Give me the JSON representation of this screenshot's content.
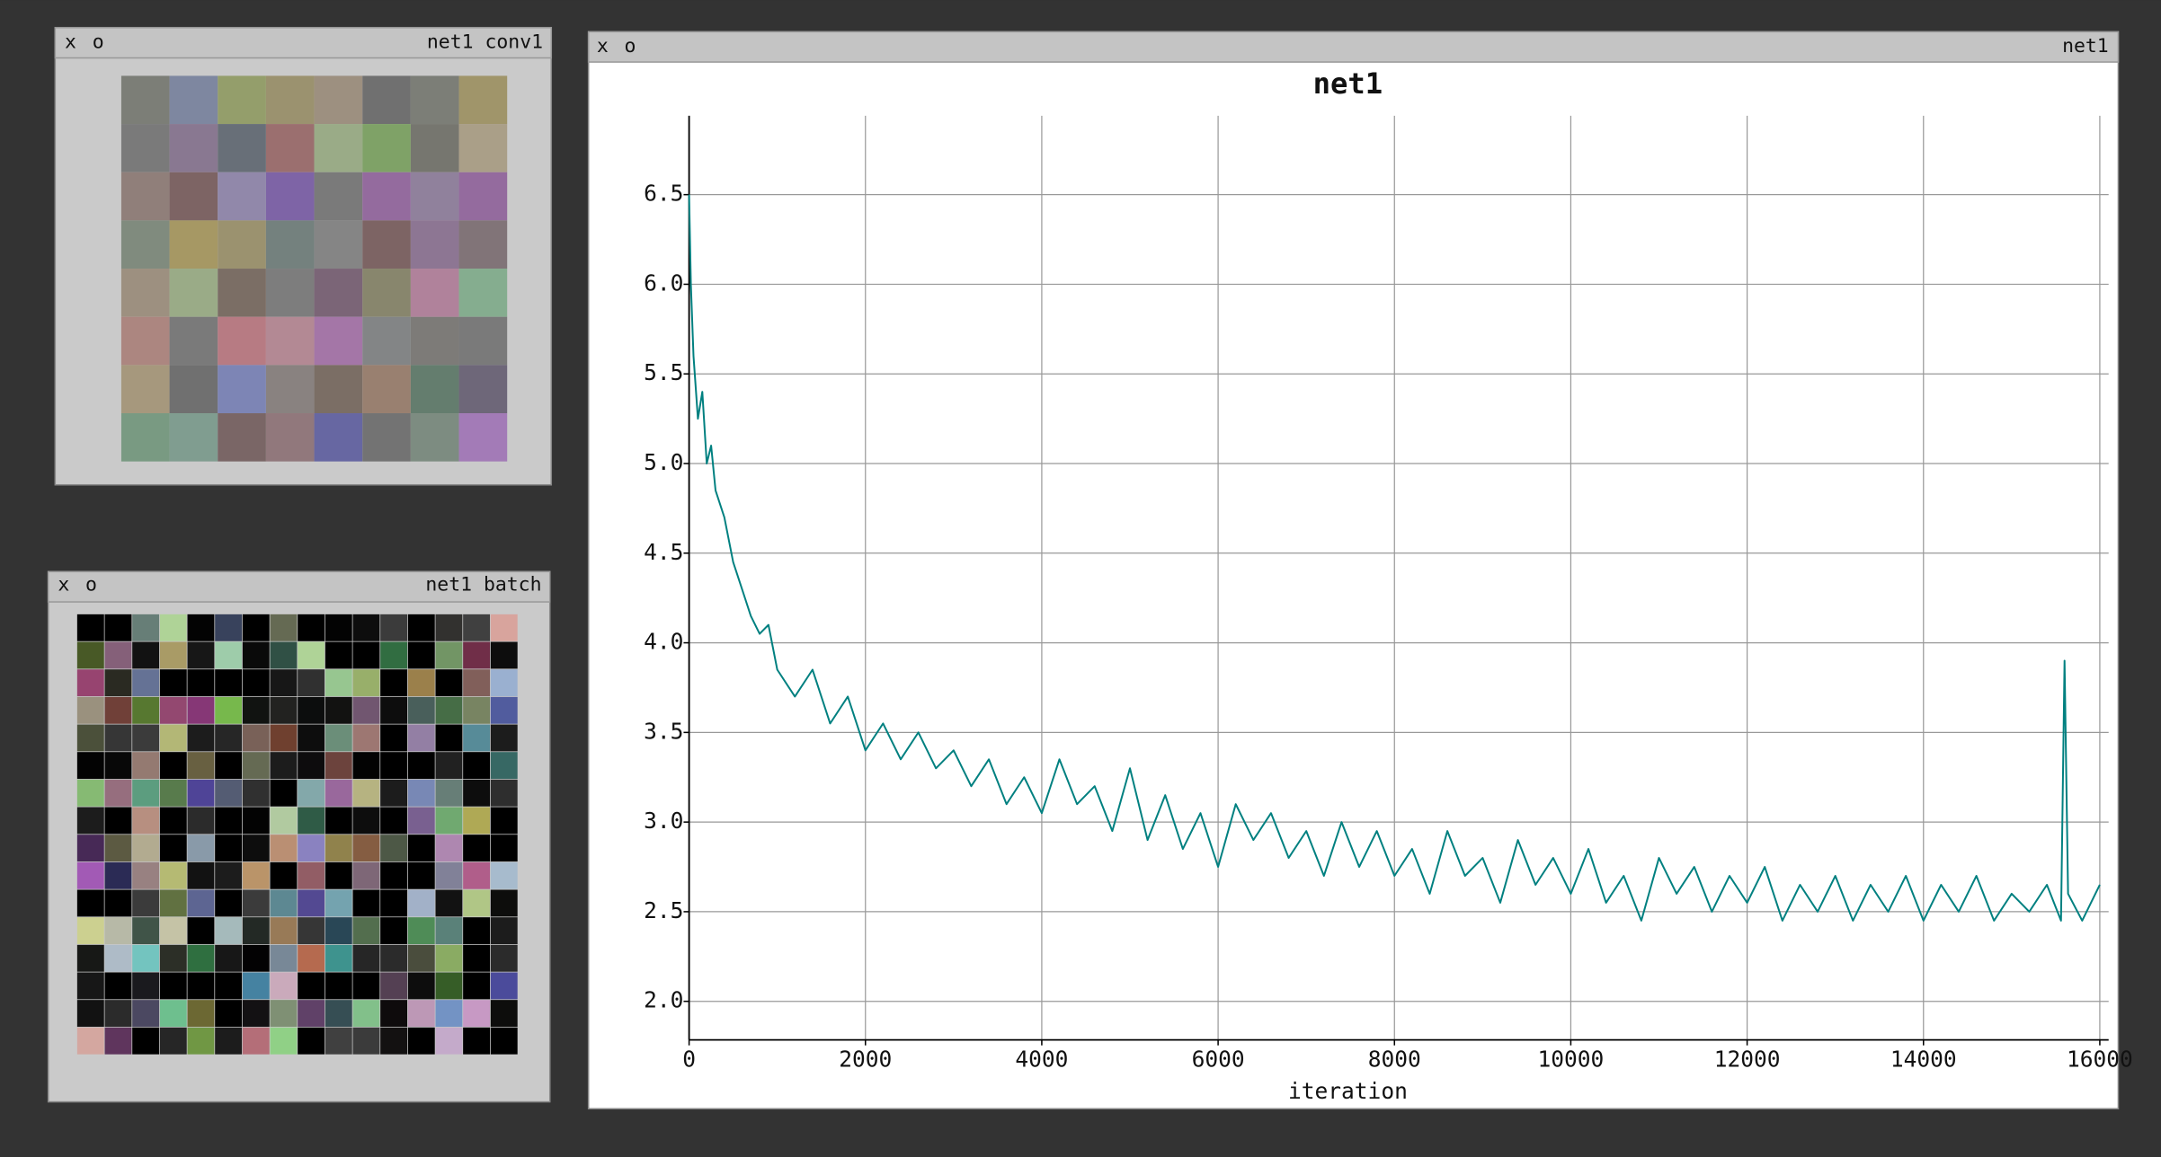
{
  "windows": [
    {
      "buttons": [
        "x",
        "o"
      ],
      "title": "net1 conv1"
    },
    {
      "buttons": [
        "x",
        "o"
      ],
      "title": "net1 batch"
    },
    {
      "buttons": [
        "x",
        "o"
      ],
      "title": "net1"
    }
  ],
  "chart_data": {
    "type": "line",
    "title": "net1",
    "xlabel": "iteration",
    "color": "#008080",
    "grid": true,
    "xlim": [
      0,
      16100
    ],
    "xticks": [
      0,
      2000,
      4000,
      6000,
      8000,
      10000,
      12000,
      14000,
      16000
    ],
    "ylim": [
      1.785,
      6.94
    ],
    "yticks": [
      {
        "value": 2.0,
        "label": "2.0"
      },
      2.5,
      {
        "value": 3.0,
        "label": "3.0"
      },
      3.5,
      {
        "value": 4.0,
        "label": "4.0"
      },
      4.5,
      {
        "value": 5.0,
        "label": "5.0"
      },
      5.5,
      {
        "value": 6.0,
        "label": "6.0"
      },
      6.5
    ],
    "x": [
      0,
      20,
      50,
      100,
      150,
      200,
      250,
      300,
      400,
      500,
      600,
      700,
      800,
      900,
      1000,
      1200,
      1400,
      1600,
      1800,
      2000,
      2200,
      2400,
      2600,
      2800,
      3000,
      3200,
      3400,
      3600,
      3800,
      4000,
      4200,
      4400,
      4600,
      4800,
      5000,
      5200,
      5400,
      5600,
      5800,
      6000,
      6200,
      6400,
      6600,
      6800,
      7000,
      7200,
      7400,
      7600,
      7800,
      8000,
      8200,
      8400,
      8600,
      8800,
      9000,
      9200,
      9400,
      9600,
      9800,
      10000,
      10200,
      10400,
      10600,
      10800,
      11000,
      11200,
      11400,
      11600,
      11800,
      12000,
      12200,
      12400,
      12600,
      12800,
      13000,
      13200,
      13400,
      13600,
      13800,
      14000,
      14200,
      14400,
      14600,
      14800,
      15000,
      15200,
      15400,
      15560,
      15600,
      15640,
      15800,
      16000
    ],
    "values": [
      6.5,
      6.0,
      5.6,
      5.25,
      5.4,
      5.0,
      5.1,
      4.85,
      4.7,
      4.45,
      4.3,
      4.15,
      4.05,
      4.1,
      3.85,
      3.7,
      3.85,
      3.55,
      3.7,
      3.4,
      3.55,
      3.35,
      3.5,
      3.3,
      3.4,
      3.2,
      3.35,
      3.1,
      3.25,
      3.05,
      3.35,
      3.1,
      3.2,
      2.95,
      3.3,
      2.9,
      3.15,
      2.85,
      3.05,
      2.75,
      3.1,
      2.9,
      3.05,
      2.8,
      2.95,
      2.7,
      3.0,
      2.75,
      2.95,
      2.7,
      2.85,
      2.6,
      2.95,
      2.7,
      2.8,
      2.55,
      2.9,
      2.65,
      2.8,
      2.6,
      2.85,
      2.55,
      2.7,
      2.45,
      2.8,
      2.6,
      2.75,
      2.5,
      2.7,
      2.55,
      2.75,
      2.45,
      2.65,
      2.5,
      2.7,
      2.45,
      2.65,
      2.5,
      2.7,
      2.45,
      2.65,
      2.5,
      2.7,
      2.45,
      2.6,
      2.5,
      2.65,
      2.45,
      3.9,
      2.6,
      2.45,
      2.65
    ]
  }
}
